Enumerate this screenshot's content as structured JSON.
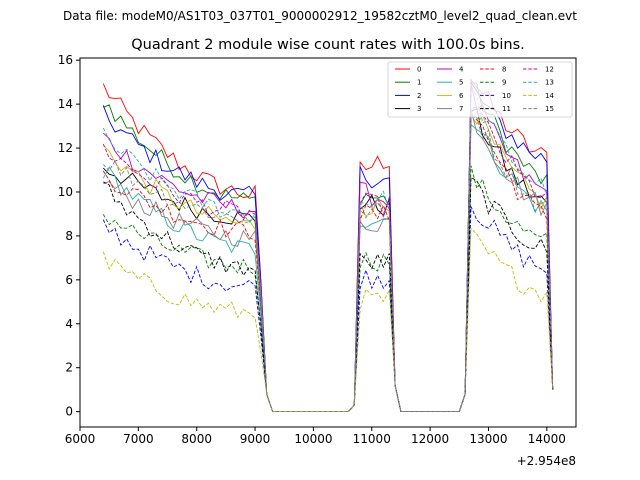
{
  "chart_data": {
    "type": "line",
    "suptitle": "Data file: modeM0/AS1T03_037T01_9000002912_19582cztM0_level2_quad_clean.evt",
    "title": "Quadrant 2 module wise count rates with 100.0s bins.",
    "xlabel": "",
    "ylabel": "",
    "x_offset_label": "+2.954e8",
    "xlim": [
      6000,
      14500
    ],
    "ylim": [
      -0.7,
      16.1
    ],
    "xticks": [
      6000,
      7000,
      8000,
      9000,
      10000,
      11000,
      12000,
      13000,
      14000
    ],
    "yticks": [
      0,
      2,
      4,
      6,
      8,
      10,
      12,
      14,
      16
    ],
    "legend_position": "top-right",
    "segments": [
      {
        "start": 6400,
        "end": 9000
      },
      {
        "start": 10800,
        "end": 11300
      },
      {
        "start": 12700,
        "end": 14000
      }
    ],
    "series": [
      {
        "name": "0",
        "color": "#ff0000",
        "style": "solid",
        "levels": [
          14.8,
          9.9,
          11.0,
          11.5,
          15.3,
          11.6
        ]
      },
      {
        "name": "1",
        "color": "#008000",
        "style": "solid",
        "levels": [
          14.2,
          9.6,
          9.9,
          9.6,
          15.0,
          10.5
        ]
      },
      {
        "name": "2",
        "color": "#0000ff",
        "style": "solid",
        "levels": [
          13.5,
          9.8,
          10.8,
          10.5,
          14.8,
          11.5
        ]
      },
      {
        "name": "3",
        "color": "#000000",
        "style": "solid",
        "levels": [
          11.2,
          8.8,
          9.5,
          9.3,
          13.8,
          9.5
        ]
      },
      {
        "name": "4",
        "color": "#bf00bf",
        "style": "solid",
        "levels": [
          12.5,
          9.2,
          10.0,
          9.6,
          14.5,
          10.0
        ]
      },
      {
        "name": "5",
        "color": "#20b2aa",
        "style": "solid",
        "levels": [
          11.0,
          7.4,
          8.8,
          8.8,
          13.5,
          9.2
        ]
      },
      {
        "name": "6",
        "color": "#bfbf00",
        "style": "solid",
        "levels": [
          12.0,
          8.5,
          9.4,
          9.3,
          14.0,
          9.5
        ]
      },
      {
        "name": "7",
        "color": "#808080",
        "style": "solid",
        "levels": [
          10.5,
          7.9,
          8.5,
          8.7,
          13.6,
          9.3
        ]
      },
      {
        "name": "8",
        "color": "#ff0000",
        "style": "dashed",
        "levels": [
          10.8,
          8.2,
          9.0,
          8.9,
          14.0,
          8.9
        ]
      },
      {
        "name": "9",
        "color": "#008000",
        "style": "dashed",
        "levels": [
          9.0,
          6.6,
          6.9,
          6.9,
          10.8,
          7.7
        ]
      },
      {
        "name": "10",
        "color": "#0000ff",
        "style": "dashed",
        "levels": [
          8.5,
          5.7,
          6.1,
          6.1,
          9.5,
          6.5
        ]
      },
      {
        "name": "11",
        "color": "#000000",
        "style": "dashed",
        "levels": [
          10.2,
          6.5,
          6.8,
          6.8,
          10.5,
          7.4
        ]
      },
      {
        "name": "12",
        "color": "#bf00bf",
        "style": "dashed",
        "levels": [
          12.0,
          9.0,
          9.5,
          9.3,
          14.2,
          9.8
        ]
      },
      {
        "name": "13",
        "color": "#20b2aa",
        "style": "dashed",
        "levels": [
          12.5,
          9.0,
          9.6,
          9.6,
          14.5,
          10.2
        ]
      },
      {
        "name": "14",
        "color": "#bfbf00",
        "style": "dashed",
        "levels": [
          6.9,
          4.5,
          5.1,
          5.1,
          8.0,
          5.4
        ]
      },
      {
        "name": "15",
        "color": "#808080",
        "style": "dashed",
        "levels": [
          11.5,
          8.8,
          9.2,
          9.0,
          13.9,
          9.3
        ]
      }
    ]
  }
}
